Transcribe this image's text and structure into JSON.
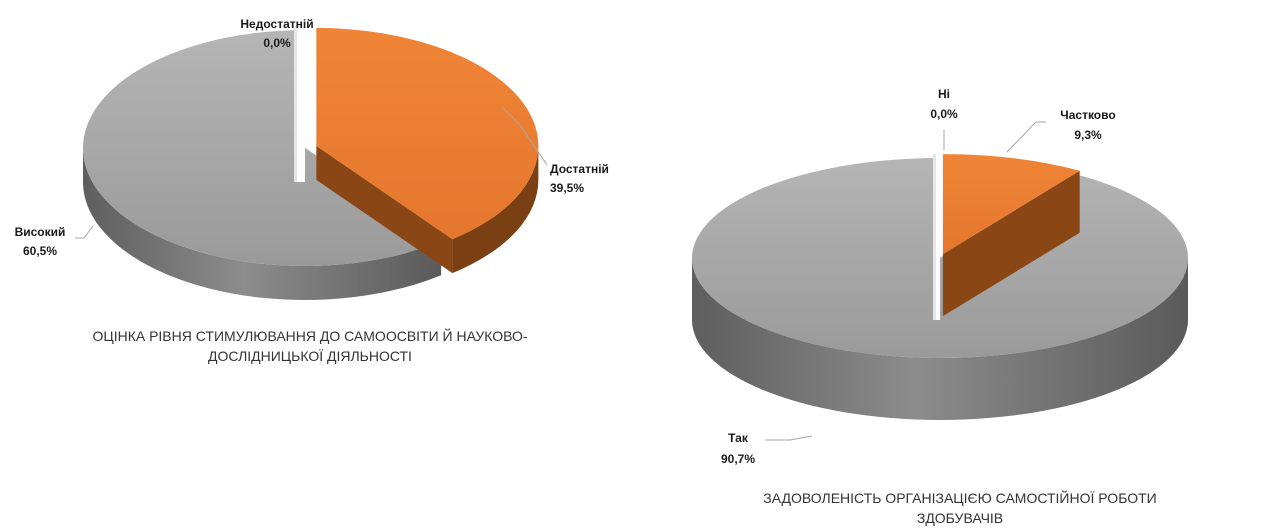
{
  "colors": {
    "gray_top": "#a3a3a3",
    "gray_side": "#6f6f6f",
    "orange_top": "#ed7d31",
    "orange_side": "#7a3f12",
    "white_wedge": "#ffffff",
    "leader": "#a6a6a6"
  },
  "chart_data": [
    {
      "type": "pie",
      "title": "ОЦІНКА РІВНЯ СТИМУЛЮВАННЯ ДО САМООСВІТИ Й НАУКОВО-\nДОСЛІДНИЦЬКОЇ ДІЯЛЬНОСТІ",
      "slices": [
        {
          "label": "Недостатній",
          "value": 0.0,
          "value_label": "0,0%",
          "color": "#ffffff"
        },
        {
          "label": "Достатній",
          "value": 39.5,
          "value_label": "39,5%",
          "color": "#ed7d31"
        },
        {
          "label": "Високий",
          "value": 60.5,
          "value_label": "60,5%",
          "color": "#a3a3a3"
        }
      ]
    },
    {
      "type": "pie",
      "title": "ЗАДОВОЛЕНІСТЬ ОРГАНІЗАЦІЄЮ САМОСТІЙНОЇ  РОБОТИ\nЗДОБУВАЧІВ",
      "slices": [
        {
          "label": "Ні",
          "value": 0.0,
          "value_label": "0,0%",
          "color": "#ffffff"
        },
        {
          "label": "Частково",
          "value": 9.3,
          "value_label": "9,3%",
          "color": "#ed7d31"
        },
        {
          "label": "Так",
          "value": 90.7,
          "value_label": "90,7%",
          "color": "#a3a3a3"
        }
      ]
    }
  ]
}
